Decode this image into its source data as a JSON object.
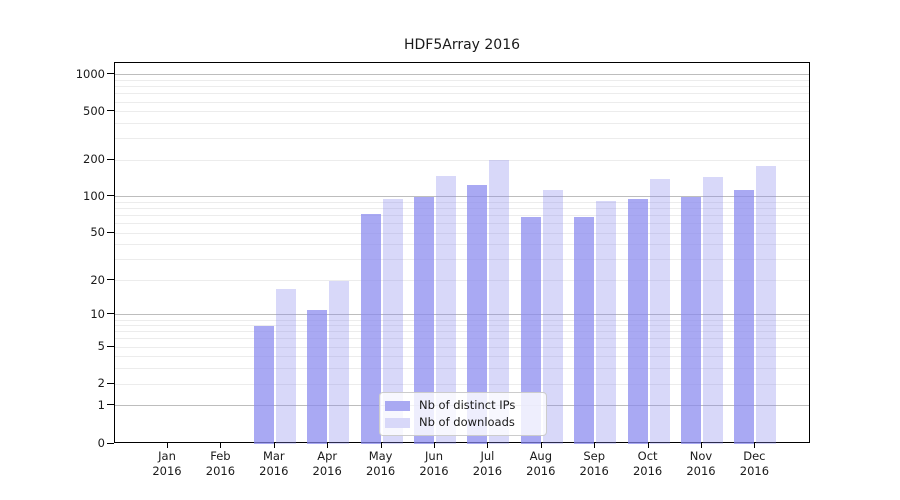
{
  "title": "HDF5Array 2016",
  "legend": {
    "items": [
      {
        "label": "Nb of distinct IPs",
        "swatch": "#a9a9f2"
      },
      {
        "label": "Nb of downloads",
        "swatch": "#d8d8f9"
      }
    ]
  },
  "colors": {
    "ips_bar": "rgba(136,136,238,0.72)",
    "downloads_bar": "rgba(136,136,238,0.33)",
    "grid_major": "#bdbdbd",
    "grid_minor": "#ececec",
    "axis": "#000000"
  },
  "chart_data": {
    "type": "bar",
    "title": "HDF5Array 2016",
    "categories": [
      "Jan",
      "Feb",
      "Mar",
      "Apr",
      "May",
      "Jun",
      "Jul",
      "Aug",
      "Sep",
      "Oct",
      "Nov",
      "Dec"
    ],
    "category_year": "2016",
    "series": [
      {
        "name": "Nb of distinct IPs",
        "values": [
          0,
          0,
          8,
          11,
          72,
          100,
          125,
          68,
          68,
          96,
          100,
          115
        ]
      },
      {
        "name": "Nb of downloads",
        "values": [
          0,
          0,
          17,
          20,
          96,
          150,
          200,
          115,
          92,
          140,
          145,
          180
        ]
      }
    ],
    "xlabel": "",
    "ylabel": "",
    "y_axis": {
      "scale": "log1p",
      "ticks": [
        0,
        1,
        2,
        5,
        10,
        20,
        50,
        100,
        200,
        500,
        1000
      ],
      "range": [
        0,
        1000
      ]
    },
    "grid": "on",
    "legend_position": "bottom-center"
  }
}
